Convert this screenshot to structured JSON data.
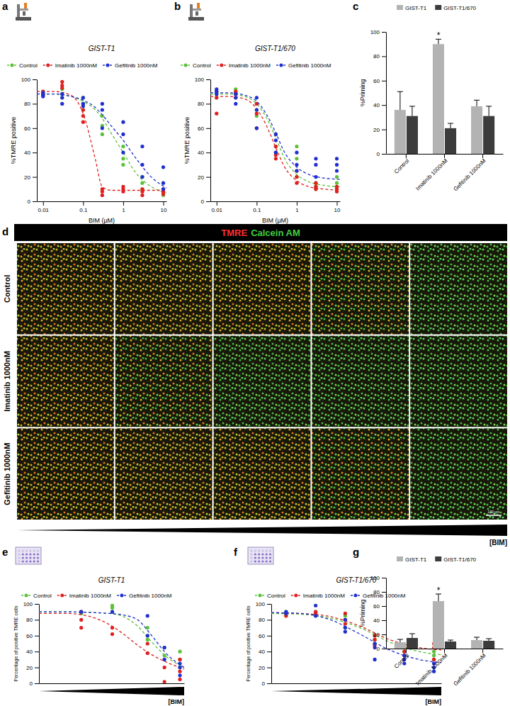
{
  "chart_data": [
    {
      "type": "scatter",
      "panel_label": "a",
      "title": "GIST-T1",
      "x_label": "BIM (µM)",
      "y_label": "%TMRE positive",
      "log": "x",
      "legend": "top",
      "xlim": [
        0.007,
        12
      ],
      "xticks": [
        0.01,
        0.1,
        1,
        10
      ],
      "ylim": [
        0,
        100
      ],
      "yticks": [
        0,
        20,
        40,
        60,
        80,
        100
      ],
      "series": [
        {
          "name": "Control",
          "color": "#5cc13a",
          "marker": "circle",
          "line_style": "dashed",
          "x": [
            0.01,
            0.01,
            0.01,
            0.03,
            0.03,
            0.03,
            0.1,
            0.1,
            0.1,
            0.3,
            0.3,
            0.3,
            1,
            1,
            1,
            3,
            3,
            3,
            10,
            10,
            10
          ],
          "values": [
            88,
            90,
            87,
            92,
            85,
            88,
            80,
            75,
            85,
            70,
            55,
            62,
            45,
            35,
            30,
            15,
            10,
            20,
            5,
            8,
            10
          ],
          "fit_x": [
            0.007,
            0.02,
            0.05,
            0.1,
            0.2,
            0.3,
            0.5,
            1,
            2,
            5,
            12
          ],
          "fit_values": [
            88,
            88,
            86,
            82,
            75,
            68,
            56,
            40,
            24,
            12,
            7
          ]
        },
        {
          "name": "Imatinib 1000nM",
          "color": "#e02020",
          "marker": "circle",
          "line_style": "dashed",
          "x": [
            0.01,
            0.01,
            0.01,
            0.03,
            0.03,
            0.03,
            0.1,
            0.1,
            0.1,
            0.3,
            0.3,
            0.3,
            1,
            1,
            1,
            3,
            3,
            3,
            10,
            10,
            10
          ],
          "values": [
            90,
            88,
            87,
            95,
            93,
            98,
            75,
            65,
            70,
            8,
            5,
            10,
            10,
            8,
            12,
            8,
            5,
            10,
            8,
            6,
            10
          ],
          "fit_x": [
            0.007,
            0.02,
            0.05,
            0.1,
            0.2,
            0.3,
            0.5,
            1,
            2,
            5,
            12
          ],
          "fit_values": [
            90,
            90,
            87,
            72,
            35,
            12,
            9,
            9,
            9,
            9,
            9
          ]
        },
        {
          "name": "Gefitinib 1000nM",
          "color": "#2030d0",
          "marker": "circle",
          "line_style": "dashed",
          "x": [
            0.01,
            0.01,
            0.01,
            0.03,
            0.03,
            0.03,
            0.1,
            0.1,
            0.1,
            0.3,
            0.3,
            0.3,
            1,
            1,
            1,
            3,
            3,
            3,
            10,
            10,
            10
          ],
          "values": [
            88,
            86,
            89,
            88,
            80,
            85,
            78,
            80,
            85,
            60,
            75,
            80,
            65,
            40,
            55,
            45,
            30,
            20,
            28,
            15,
            10
          ],
          "fit_x": [
            0.007,
            0.02,
            0.05,
            0.1,
            0.2,
            0.3,
            0.5,
            1,
            2,
            5,
            12
          ],
          "fit_values": [
            88,
            88,
            86,
            83,
            77,
            71,
            62,
            50,
            36,
            20,
            11
          ]
        }
      ]
    },
    {
      "type": "scatter",
      "panel_label": "b",
      "title": "GIST-T1/670",
      "x_label": "BIM (µM)",
      "y_label": "%TMRE positive",
      "log": "x",
      "legend": "top",
      "xlim": [
        0.007,
        12
      ],
      "xticks": [
        0.01,
        0.1,
        1,
        10
      ],
      "ylim": [
        0,
        100
      ],
      "yticks": [
        0,
        20,
        40,
        60,
        80,
        100
      ],
      "series": [
        {
          "name": "Control",
          "color": "#5cc13a",
          "marker": "circle",
          "line_style": "dashed",
          "x": [
            0.01,
            0.01,
            0.01,
            0.03,
            0.03,
            0.03,
            0.1,
            0.1,
            0.1,
            0.3,
            0.3,
            0.3,
            1,
            1,
            1,
            3,
            3,
            3,
            10,
            10,
            10
          ],
          "values": [
            88,
            85,
            90,
            90,
            88,
            92,
            80,
            75,
            70,
            45,
            55,
            40,
            20,
            35,
            45,
            12,
            15,
            10,
            10,
            15,
            20
          ],
          "fit_x": [
            0.007,
            0.02,
            0.05,
            0.1,
            0.2,
            0.3,
            0.5,
            1,
            2,
            5,
            12
          ],
          "fit_values": [
            88,
            88,
            86,
            80,
            65,
            52,
            35,
            22,
            16,
            13,
            12
          ]
        },
        {
          "name": "Imatinib 1000nM",
          "color": "#e02020",
          "marker": "circle",
          "line_style": "dashed",
          "x": [
            0.01,
            0.01,
            0.01,
            0.03,
            0.03,
            0.03,
            0.1,
            0.1,
            0.1,
            0.3,
            0.3,
            0.3,
            1,
            1,
            1,
            3,
            3,
            3,
            10,
            10,
            10
          ],
          "values": [
            85,
            72,
            90,
            85,
            88,
            90,
            80,
            72,
            60,
            35,
            45,
            38,
            20,
            25,
            15,
            12,
            10,
            15,
            8,
            10,
            12
          ],
          "fit_x": [
            0.007,
            0.02,
            0.05,
            0.1,
            0.2,
            0.3,
            0.5,
            1,
            2,
            5,
            12
          ],
          "fit_values": [
            86,
            86,
            84,
            76,
            58,
            44,
            28,
            17,
            12,
            10,
            9
          ]
        },
        {
          "name": "Gefitinib 1000nM",
          "color": "#2030d0",
          "marker": "circle",
          "line_style": "dashed",
          "x": [
            0.01,
            0.01,
            0.01,
            0.03,
            0.03,
            0.03,
            0.1,
            0.1,
            0.1,
            0.3,
            0.3,
            0.3,
            1,
            1,
            1,
            3,
            3,
            3,
            10,
            10,
            10
          ],
          "values": [
            88,
            90,
            92,
            85,
            80,
            88,
            60,
            75,
            85,
            50,
            40,
            55,
            30,
            25,
            40,
            30,
            20,
            35,
            35,
            25,
            30
          ],
          "fit_x": [
            0.007,
            0.02,
            0.05,
            0.1,
            0.2,
            0.3,
            0.5,
            1,
            2,
            5,
            12
          ],
          "fit_values": [
            89,
            89,
            87,
            82,
            68,
            56,
            40,
            28,
            22,
            19,
            18
          ]
        }
      ]
    },
    {
      "type": "bar",
      "panel_label": "c",
      "y_label": "%Priming",
      "legend": "top",
      "categories": [
        "Control",
        "Imatinib 1000nM",
        "Gefitinib 1000nM"
      ],
      "ylim": [
        0,
        100
      ],
      "yticks": [
        0,
        20,
        40,
        60,
        80,
        100
      ],
      "series": [
        {
          "name": "GIST-T1",
          "color": "#b3b3b3",
          "values": [
            36,
            90,
            39
          ],
          "errors": [
            15,
            4,
            5
          ]
        },
        {
          "name": "GIST-T1/670",
          "color": "#3c3c3c",
          "values": [
            31,
            21,
            31
          ],
          "errors": [
            8,
            4,
            8
          ]
        }
      ],
      "annotations": [
        {
          "text": "*",
          "series": 0,
          "category": 1
        }
      ]
    },
    {
      "type": "scatter",
      "panel_label": "e",
      "title": "GIST-T1",
      "x_label": "[BIM]",
      "y_label": "Percentage of positive TMRE cells",
      "legend": "top",
      "tick_labels": "y",
      "xlim": [
        0,
        10.3
      ],
      "ylim": [
        0,
        100
      ],
      "yticks": [
        0,
        20,
        40,
        60,
        80,
        100
      ],
      "series": [
        {
          "name": "Control",
          "color": "#5cc13a",
          "marker": "circle",
          "line_style": "dashed",
          "x": [
            3,
            3,
            5.2,
            5.2,
            5.2,
            7.7,
            7.7,
            7.7,
            8.9,
            8.9,
            10,
            10,
            10
          ],
          "values": [
            90,
            88,
            98,
            95,
            90,
            60,
            55,
            70,
            45,
            35,
            40,
            20,
            30
          ],
          "fit_x": [
            0,
            2,
            4,
            5,
            6,
            7,
            8,
            9,
            10.3
          ],
          "fit_values": [
            90,
            90,
            89,
            88,
            84,
            72,
            52,
            34,
            20
          ]
        },
        {
          "name": "Imatinib 1000nM",
          "color": "#e02020",
          "marker": "circle",
          "line_style": "dashed",
          "x": [
            3,
            3,
            3,
            5.2,
            5.2,
            7.7,
            7.7,
            8.9,
            8.9,
            10,
            10,
            10
          ],
          "values": [
            90,
            80,
            70,
            70,
            62,
            38,
            50,
            20,
            2,
            30,
            15,
            5
          ],
          "fit_x": [
            0,
            2,
            4,
            5,
            6,
            7,
            8,
            9,
            10.3
          ],
          "fit_values": [
            88,
            88,
            82,
            74,
            62,
            48,
            36,
            27,
            18
          ]
        },
        {
          "name": "Gefitinib 1000nM",
          "color": "#2030d0",
          "marker": "circle",
          "line_style": "dashed",
          "x": [
            3,
            5.2,
            7.7,
            7.7,
            8.9,
            8.9,
            10,
            10,
            10
          ],
          "values": [
            90,
            90,
            85,
            60,
            45,
            30,
            25,
            20,
            10
          ],
          "fit_x": [
            0,
            2,
            4,
            5,
            6,
            7,
            8,
            9,
            10.3
          ],
          "fit_values": [
            90,
            90,
            89,
            88,
            86,
            80,
            60,
            38,
            20
          ]
        }
      ]
    },
    {
      "type": "scatter",
      "panel_label": "f",
      "title": "GIST-T1/670",
      "x_label": "[BIM]",
      "y_label": "Percentage of positive TMRE cells",
      "legend": "top",
      "tick_labels": "y",
      "xlim": [
        0,
        11.5
      ],
      "ylim": [
        0,
        100
      ],
      "yticks": [
        0,
        20,
        40,
        60,
        80,
        100
      ],
      "series": [
        {
          "name": "Control",
          "color": "#5cc13a",
          "marker": "circle",
          "line_style": "dashed",
          "x": [
            1,
            1,
            1,
            3,
            3,
            3,
            5,
            5,
            5,
            7,
            7,
            7,
            9,
            9,
            9,
            11,
            11,
            11
          ],
          "values": [
            90,
            85,
            88,
            88,
            90,
            85,
            85,
            80,
            70,
            60,
            55,
            50,
            40,
            45,
            35,
            30,
            35,
            40
          ],
          "fit_x": [
            0,
            2,
            4,
            6,
            8,
            10,
            11.5
          ],
          "fit_values": [
            88,
            87,
            82,
            70,
            52,
            40,
            36
          ]
        },
        {
          "name": "Imatinib 1000nM",
          "color": "#e02020",
          "marker": "circle",
          "line_style": "dashed",
          "x": [
            1,
            1,
            3,
            3,
            5,
            5,
            5,
            7,
            7,
            7,
            9,
            9,
            9,
            11,
            11,
            11
          ],
          "values": [
            88,
            85,
            90,
            88,
            88,
            80,
            75,
            55,
            60,
            48,
            40,
            45,
            35,
            50,
            45,
            30
          ],
          "fit_x": [
            0,
            2,
            4,
            6,
            8,
            10,
            11.5
          ],
          "fit_values": [
            89,
            88,
            84,
            72,
            55,
            45,
            42
          ]
        },
        {
          "name": "Gefitinib 1000nM",
          "color": "#2030d0",
          "marker": "circle",
          "line_style": "dashed",
          "x": [
            1,
            1,
            3,
            3,
            5,
            5,
            5,
            7,
            7,
            7,
            9,
            9,
            9,
            11,
            11,
            11
          ],
          "values": [
            88,
            90,
            98,
            85,
            70,
            65,
            80,
            45,
            50,
            30,
            30,
            25,
            35,
            15,
            20,
            25
          ],
          "fit_x": [
            0,
            2,
            4,
            6,
            8,
            10,
            11.5
          ],
          "fit_values": [
            89,
            88,
            80,
            62,
            42,
            30,
            26
          ]
        }
      ]
    },
    {
      "type": "bar",
      "panel_label": "g",
      "y_label": "%Priming",
      "legend": "top",
      "categories": [
        "Control",
        "Imatinib 1000nM",
        "Gefitinib 1000nM"
      ],
      "ylim": [
        0,
        100
      ],
      "yticks": [
        0,
        20,
        40,
        60,
        80,
        100
      ],
      "series": [
        {
          "name": "GIST-T1",
          "color": "#b3b3b3",
          "values": [
            9,
            67,
            12
          ],
          "errors": [
            4,
            10,
            4
          ]
        },
        {
          "name": "GIST-T1/670",
          "color": "#3c3c3c",
          "values": [
            15,
            10,
            11
          ],
          "errors": [
            6,
            2,
            3
          ]
        }
      ],
      "annotations": [
        {
          "text": "*",
          "series": 0,
          "category": 1
        }
      ]
    }
  ],
  "micrograph": {
    "panel_label": "d",
    "stain_labels": [
      {
        "text": "TMRE",
        "color": "#ff3030"
      },
      {
        "text": "Calcein AM",
        "color": "#40d040"
      }
    ],
    "rows": [
      "Control",
      "Imatinib 1000nM",
      "Gefitinib 1000nM"
    ],
    "columns": 5,
    "gradient_label": "[BIM]",
    "scale_bar": "100 µm"
  }
}
